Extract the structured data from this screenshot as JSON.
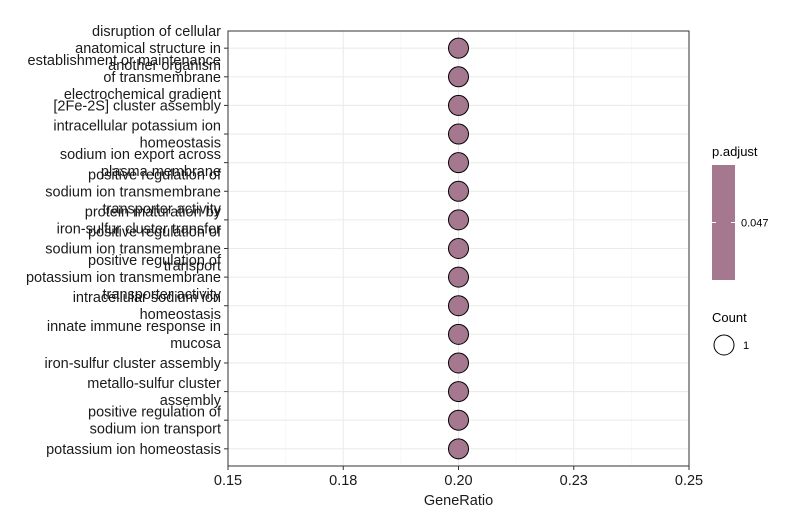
{
  "chart_data": {
    "type": "scatter",
    "xlabel": "GeneRatio",
    "xlim": [
      0.15,
      0.25
    ],
    "xticks": [
      0.15,
      0.175,
      0.2,
      0.225,
      0.25
    ],
    "xtick_labels": [
      "0.15",
      "0.18",
      "0.20",
      "0.23",
      "0.25"
    ],
    "grid": true,
    "legend_position": "right",
    "point_color": "#a57890",
    "categories": [
      "disruption of cellular anatomical structure in another organism",
      "establishment or maintenance of transmembrane electrochemical gradient",
      "[2Fe-2S] cluster assembly",
      "intracellular potassium ion homeostasis",
      "sodium ion export across plasma membrane",
      "positive regulation of sodium ion transmembrane transporter activity",
      "protein maturation by iron-sulfur cluster transfer",
      "positive regulation of sodium ion transmembrane transport",
      "positive regulation of potassium ion transmembrane transporter activity",
      "intracellular sodium ion homeostasis",
      "innate immune response in mucosa",
      "iron-sulfur cluster assembly",
      "metallo-sulfur cluster assembly",
      "positive regulation of sodium ion transport",
      "potassium ion homeostasis"
    ],
    "wrapped_labels": [
      [
        "disruption of cellular",
        "anatomical structure in",
        "another organism"
      ],
      [
        "establishment or maintenance",
        "of transmembrane",
        "electrochemical gradient"
      ],
      [
        "[2Fe-2S] cluster assembly"
      ],
      [
        "intracellular potassium ion",
        "homeostasis"
      ],
      [
        "sodium ion export across",
        "plasma membrane"
      ],
      [
        "positive regulation of",
        "sodium ion transmembrane",
        "transporter activity"
      ],
      [
        "protein maturation by",
        "iron-sulfur cluster transfer"
      ],
      [
        "positive regulation of",
        "sodium ion transmembrane",
        "transport"
      ],
      [
        "positive regulation of",
        "potassium ion transmembrane",
        "transporter activity"
      ],
      [
        "intracellular sodium ion",
        "homeostasis"
      ],
      [
        "innate immune response in",
        "mucosa"
      ],
      [
        "iron-sulfur cluster assembly"
      ],
      [
        "metallo-sulfur cluster",
        "assembly"
      ],
      [
        "positive regulation of",
        "sodium ion transport"
      ],
      [
        "potassium ion homeostasis"
      ]
    ],
    "x": [
      0.2,
      0.2,
      0.2,
      0.2,
      0.2,
      0.2,
      0.2,
      0.2,
      0.2,
      0.2,
      0.2,
      0.2,
      0.2,
      0.2,
      0.2
    ],
    "count": [
      1,
      1,
      1,
      1,
      1,
      1,
      1,
      1,
      1,
      1,
      1,
      1,
      1,
      1,
      1
    ],
    "p_adjust": [
      0.047,
      0.047,
      0.047,
      0.047,
      0.047,
      0.047,
      0.047,
      0.047,
      0.047,
      0.047,
      0.047,
      0.047,
      0.047,
      0.047,
      0.047
    ],
    "legend": {
      "color_title": "p.adjust",
      "color_label": "0.047",
      "size_title": "Count",
      "size_label": "1"
    }
  }
}
